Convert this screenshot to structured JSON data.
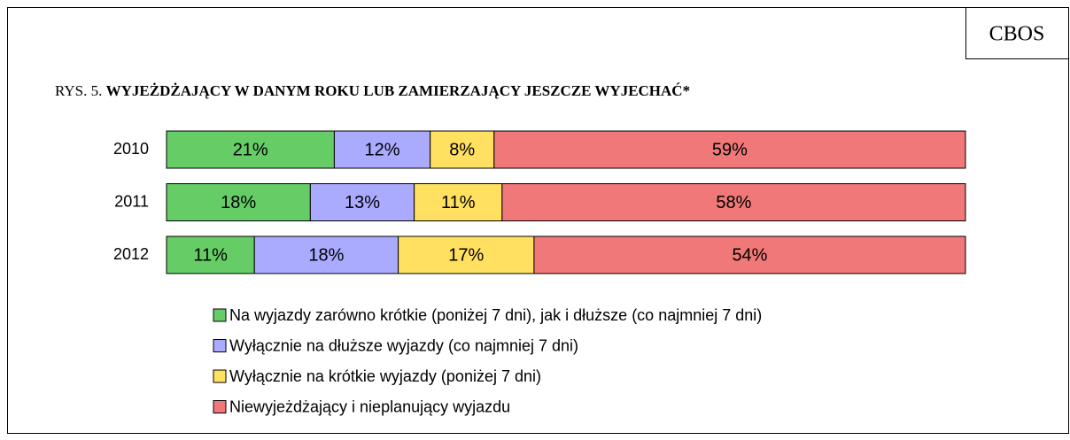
{
  "chart_data": {
    "type": "stacked-barh",
    "source": "CBOS",
    "figure_label": "RYS. 5.",
    "title": "WYJEŻDŻAJĄCY W DANYM ROKU LUB ZAMIERZAJĄCY JESZCZE WYJECHAĆ*",
    "categories": [
      "2010",
      "2011",
      "2012"
    ],
    "xlim": [
      0,
      100
    ],
    "series": [
      {
        "name": "Na wyjazdy zarówno krótkie (poniżej 7 dni), jak i dłuższe (co najmniej 7 dni)",
        "color": "#66cc66",
        "values": [
          21,
          18,
          11
        ],
        "value_labels": [
          "21%",
          "18%",
          "11%"
        ]
      },
      {
        "name": "Wyłącznie na dłuższe wyjazdy (co najmniej 7 dni)",
        "color": "#aaaaff",
        "values": [
          12,
          13,
          18
        ],
        "value_labels": [
          "12%",
          "13%",
          "18%"
        ]
      },
      {
        "name": "Wyłącznie na krótkie wyjazdy (poniżej 7 dni)",
        "color": "#ffe060",
        "values": [
          8,
          11,
          17
        ],
        "value_labels": [
          "8%",
          "11%",
          "17%"
        ]
      },
      {
        "name": "Niewyjeżdżający i nieplanujący wyjazdu",
        "color": "#f07878",
        "values": [
          59,
          58,
          54
        ],
        "value_labels": [
          "59%",
          "58%",
          "54%"
        ]
      }
    ]
  }
}
